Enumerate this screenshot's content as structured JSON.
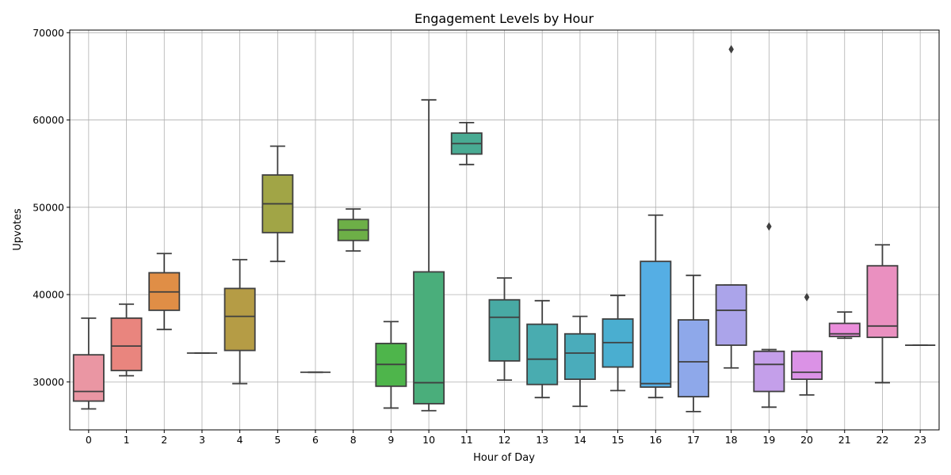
{
  "chart_data": {
    "type": "box",
    "title": "Engagement Levels by Hour",
    "xlabel": "Hour of Day",
    "ylabel": "Upvotes",
    "ylim": [
      24500,
      70300
    ],
    "yticks": [
      30000,
      40000,
      50000,
      60000,
      70000
    ],
    "grid": true,
    "boxes": [
      {
        "category": "0",
        "color": "#ea96a3",
        "whislo": 26900,
        "q1": 27800,
        "median": 28900,
        "q3": 33100,
        "whishi": 37300,
        "fliers": []
      },
      {
        "category": "1",
        "color": "#e9857e",
        "whislo": 30700,
        "q1": 31300,
        "median": 34100,
        "q3": 37300,
        "whishi": 38900,
        "fliers": []
      },
      {
        "category": "2",
        "color": "#e08e46",
        "whislo": 36000,
        "q1": 38200,
        "median": 40300,
        "q3": 42500,
        "whishi": 44700,
        "fliers": []
      },
      {
        "category": "3",
        "color": "#c99e46",
        "whislo": 33300,
        "q1": 33300,
        "median": 33300,
        "q3": 33300,
        "whishi": 33300,
        "fliers": []
      },
      {
        "category": "4",
        "color": "#b59c45",
        "whislo": 29800,
        "q1": 33600,
        "median": 37500,
        "q3": 40700,
        "whishi": 44000,
        "fliers": []
      },
      {
        "category": "5",
        "color": "#a1a546",
        "whislo": 43800,
        "q1": 47100,
        "median": 50400,
        "q3": 53700,
        "whishi": 57000,
        "fliers": []
      },
      {
        "category": "6",
        "color": "#8aab46",
        "whislo": 31100,
        "q1": 31100,
        "median": 31100,
        "q3": 31100,
        "whishi": 31100,
        "fliers": []
      },
      {
        "category": "8",
        "color": "#6daf47",
        "whislo": 45000,
        "q1": 46200,
        "median": 47400,
        "q3": 48600,
        "whishi": 49800,
        "fliers": []
      },
      {
        "category": "9",
        "color": "#4eb54b",
        "whislo": 27000,
        "q1": 29500,
        "median": 32000,
        "q3": 34400,
        "whishi": 36900,
        "fliers": []
      },
      {
        "category": "10",
        "color": "#4aae7b",
        "whislo": 26700,
        "q1": 27500,
        "median": 29900,
        "q3": 42600,
        "whishi": 62300,
        "fliers": []
      },
      {
        "category": "11",
        "color": "#49ab93",
        "whislo": 54900,
        "q1": 56100,
        "median": 57300,
        "q3": 58500,
        "whishi": 59700,
        "fliers": []
      },
      {
        "category": "12",
        "color": "#48aaa4",
        "whislo": 30200,
        "q1": 32400,
        "median": 37400,
        "q3": 39400,
        "whishi": 41900,
        "fliers": []
      },
      {
        "category": "13",
        "color": "#49acb0",
        "whislo": 28200,
        "q1": 29700,
        "median": 32600,
        "q3": 36600,
        "whishi": 39300,
        "fliers": []
      },
      {
        "category": "14",
        "color": "#4aacbb",
        "whislo": 27200,
        "q1": 30300,
        "median": 33300,
        "q3": 35500,
        "whishi": 37500,
        "fliers": []
      },
      {
        "category": "15",
        "color": "#4aaed0",
        "whislo": 29000,
        "q1": 31700,
        "median": 34500,
        "q3": 37200,
        "whishi": 39900,
        "fliers": []
      },
      {
        "category": "16",
        "color": "#55aee4",
        "whislo": 28200,
        "q1": 29400,
        "median": 29800,
        "q3": 43800,
        "whishi": 49100,
        "fliers": []
      },
      {
        "category": "17",
        "color": "#8ea8ea",
        "whislo": 26600,
        "q1": 28300,
        "median": 32300,
        "q3": 37100,
        "whishi": 42200,
        "fliers": []
      },
      {
        "category": "18",
        "color": "#aba4ea",
        "whislo": 31600,
        "q1": 34200,
        "median": 38200,
        "q3": 41100,
        "whishi": 41100,
        "fliers": [
          68100
        ]
      },
      {
        "category": "19",
        "color": "#c49fea",
        "whislo": 27100,
        "q1": 28900,
        "median": 32000,
        "q3": 33500,
        "whishi": 33700,
        "fliers": [
          47800
        ]
      },
      {
        "category": "20",
        "color": "#db92e6",
        "whislo": 28500,
        "q1": 30300,
        "median": 31100,
        "q3": 33500,
        "whishi": 33500,
        "fliers": [
          39700
        ]
      },
      {
        "category": "21",
        "color": "#ea8ddb",
        "whislo": 35000,
        "q1": 35200,
        "median": 35500,
        "q3": 36700,
        "whishi": 38000,
        "fliers": []
      },
      {
        "category": "22",
        "color": "#ea90c0",
        "whislo": 29900,
        "q1": 35100,
        "median": 36400,
        "q3": 43300,
        "whishi": 45700,
        "fliers": []
      },
      {
        "category": "23",
        "color": "#ea94b0",
        "whislo": 34200,
        "q1": 34200,
        "median": 34200,
        "q3": 34200,
        "whishi": 34200,
        "fliers": []
      }
    ]
  }
}
